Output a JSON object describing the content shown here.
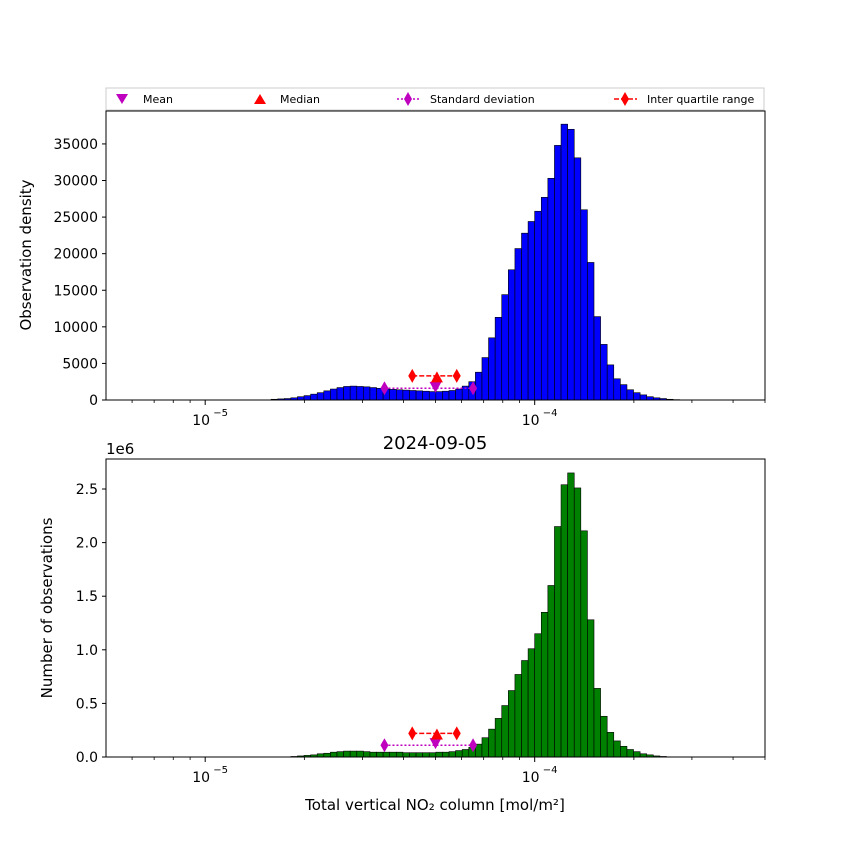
{
  "legend": {
    "items": [
      {
        "label": "Mean",
        "marker": "triangle-down",
        "color": "#bf00bf"
      },
      {
        "label": "Median",
        "marker": "triangle-up",
        "color": "#ff0000"
      },
      {
        "label": "Standard deviation",
        "marker": "diamond-dotted",
        "color": "#bf00bf"
      },
      {
        "label": "Inter quartile range",
        "marker": "diamond-dashed",
        "color": "#ff0000"
      }
    ]
  },
  "chart_data": [
    {
      "type": "bar",
      "title": "",
      "ylabel": "Observation density",
      "xlabel": "",
      "xscale": "log",
      "xlim": [
        5e-06,
        0.0005
      ],
      "ylim": [
        0,
        39500
      ],
      "yticks": [
        0,
        5000,
        10000,
        15000,
        20000,
        25000,
        30000,
        35000
      ],
      "xticks": [
        {
          "value": 1e-05,
          "label": "10",
          "exp": "−5"
        },
        {
          "value": 0.0001,
          "label": "10",
          "exp": "−4"
        }
      ],
      "bar_color": "#0000ff",
      "bins": {
        "log_start": -5.2,
        "log_width": 0.02,
        "count": 100
      },
      "values": [
        0,
        0,
        0,
        0,
        0,
        0,
        0,
        0,
        0,
        0,
        0,
        0,
        0,
        0,
        0,
        0,
        0,
        0,
        0,
        0,
        100,
        150,
        200,
        300,
        450,
        600,
        800,
        1000,
        1250,
        1500,
        1700,
        1850,
        1900,
        1850,
        1800,
        1700,
        1600,
        1500,
        1450,
        1400,
        1350,
        1300,
        1250,
        1200,
        1150,
        1150,
        1200,
        1300,
        1500,
        1900,
        2500,
        3800,
        5800,
        8500,
        11300,
        14400,
        17800,
        20700,
        22800,
        24400,
        25800,
        27700,
        30300,
        34800,
        37700,
        37000,
        33100,
        26000,
        18800,
        11400,
        7600,
        4800,
        2900,
        2100,
        1400,
        1000,
        700,
        450,
        300,
        200,
        100,
        50,
        0,
        0,
        0,
        0,
        0,
        0,
        0,
        0,
        0,
        0,
        0,
        0,
        0,
        0,
        0,
        0,
        0,
        0
      ],
      "stats": {
        "mean": {
          "x": 5e-05,
          "y": 1800
        },
        "median": {
          "x": 5.05e-05,
          "y": 3100
        },
        "std": {
          "x": [
            3.5e-05,
            6.5e-05
          ],
          "y": 1600
        },
        "iqr": {
          "x": [
            4.25e-05,
            5.8e-05
          ],
          "y": 3300
        }
      }
    },
    {
      "type": "bar",
      "title": "2024-09-05",
      "ylabel": "Number of observations",
      "xlabel": "Total vertical NO₂ column [mol/m²]",
      "xscale": "log",
      "xlim": [
        5e-06,
        0.0005
      ],
      "ylim": [
        0,
        2.78
      ],
      "yoffset_label": "1e6",
      "yticks": [
        0.0,
        0.5,
        1.0,
        1.5,
        2.0,
        2.5
      ],
      "ytick_labels": [
        "0.0",
        "0.5",
        "1.0",
        "1.5",
        "2.0",
        "2.5"
      ],
      "xticks": [
        {
          "value": 1e-05,
          "label": "10",
          "exp": "−5"
        },
        {
          "value": 0.0001,
          "label": "10",
          "exp": "−4"
        }
      ],
      "bar_color": "#008000",
      "bins": {
        "log_start": -5.2,
        "log_width": 0.02,
        "count": 100
      },
      "values": [
        0,
        0,
        0,
        0,
        0,
        0,
        0,
        0,
        0,
        0,
        0,
        0,
        0,
        0,
        0,
        0,
        0,
        0,
        0,
        0,
        0,
        0,
        0,
        0.005,
        0.01,
        0.015,
        0.02,
        0.03,
        0.035,
        0.045,
        0.05,
        0.055,
        0.055,
        0.055,
        0.05,
        0.045,
        0.045,
        0.045,
        0.045,
        0.045,
        0.04,
        0.04,
        0.04,
        0.04,
        0.04,
        0.045,
        0.045,
        0.05,
        0.06,
        0.07,
        0.09,
        0.12,
        0.18,
        0.26,
        0.36,
        0.48,
        0.62,
        0.77,
        0.9,
        1.01,
        1.15,
        1.35,
        1.6,
        2.15,
        2.54,
        2.65,
        2.51,
        2.11,
        1.28,
        0.64,
        0.38,
        0.23,
        0.15,
        0.1,
        0.07,
        0.05,
        0.03,
        0.02,
        0.01,
        0.005,
        0,
        0,
        0,
        0,
        0,
        0,
        0,
        0,
        0,
        0,
        0,
        0,
        0,
        0,
        0,
        0,
        0,
        0,
        0,
        0
      ],
      "stats": {
        "mean": {
          "x": 5e-05,
          "y": 0.13
        },
        "median": {
          "x": 5.05e-05,
          "y": 0.21
        },
        "std": {
          "x": [
            3.5e-05,
            6.5e-05
          ],
          "y": 0.11
        },
        "iqr": {
          "x": [
            4.25e-05,
            5.8e-05
          ],
          "y": 0.22
        }
      }
    }
  ]
}
